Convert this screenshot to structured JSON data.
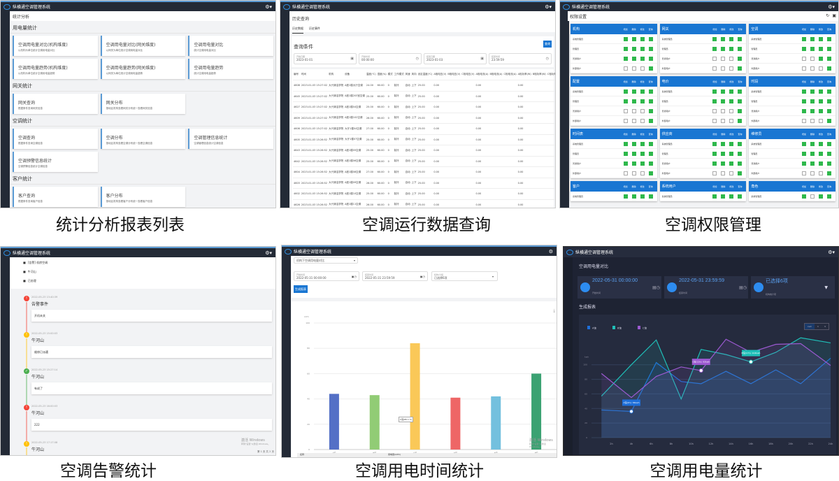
{
  "app_title": "纵横通空调管理系统",
  "captions": [
    "统计分析报表列表",
    "空调运行数据查询",
    "空调权限管理",
    "空调告警统计",
    "空调用电时间统计",
    "空调用电量统计"
  ],
  "watermark": {
    "line1": "激活 Windows",
    "line2": "转到\"设置\"以激活 Windows。"
  },
  "stats": {
    "breadcrumb": "统计分析",
    "sections": [
      {
        "title": "用电量统计",
        "cards": [
          {
            "title": "空调用电量对比(机构维度)",
            "desc": "以机构为单位统计空调用电量对比"
          },
          {
            "title": "空调用电量对比(网关维度)",
            "desc": "以网关为单位统计空调用电量对比"
          },
          {
            "title": "空调用电量对比",
            "desc": "统计空调用电量对比"
          },
          {
            "title": "空调用电量趋势(机构维度)",
            "desc": "以机构为单位统计空调用电量趋势"
          },
          {
            "title": "空调用电量趋势(网关维度)",
            "desc": "以网关为单位统计空调用电量趋势"
          },
          {
            "title": "空调用电量趋势",
            "desc": "统计空调用电量趋势"
          }
        ]
      },
      {
        "title": "网关统计",
        "cards": [
          {
            "title": "网关查询",
            "desc": "根据条件查询网关信息"
          },
          {
            "title": "网关分布",
            "desc": "按地区机构查看网关分布统一查看网关信息"
          }
        ]
      },
      {
        "title": "空调统计",
        "cards": [
          {
            "title": "空调查询",
            "desc": "根据条件查询空调信息"
          },
          {
            "title": "空调分布",
            "desc": "按地区机构查看空调分布统一查看空调信息"
          },
          {
            "title": "空调管理信息统计",
            "desc": "空调管理信息统计空调信息"
          },
          {
            "title": "空调预警信息统计",
            "desc": "空调预警信息统计空调信息"
          }
        ]
      },
      {
        "title": "客户统计",
        "cards": [
          {
            "title": "客户查询",
            "desc": "根据条件查询客户信息"
          },
          {
            "title": "客户分布",
            "desc": "按地区机构查看客户分布统一查看客户信息"
          }
        ]
      }
    ]
  },
  "history": {
    "title": "历史查询",
    "tabs": [
      "历史数据",
      "历史事件"
    ],
    "query_title": "查询条件",
    "query_button": "查询",
    "inputs": [
      {
        "label": "开始日期",
        "value": "2023-01-01",
        "icon": "calendar-icon"
      },
      {
        "label": "开始时间",
        "value": "00:00:00",
        "icon": "clock-icon"
      },
      {
        "label": "结束日期",
        "value": "2023-01-03",
        "icon": "calendar-icon"
      },
      {
        "label": "结束时间",
        "value": "23:59:59",
        "icon": "clock-icon"
      }
    ],
    "headers": [
      "编号",
      "时间",
      "机构",
      "设备",
      "温度(℃)",
      "湿度(%)",
      "模式",
      "工作模式",
      "风速",
      "风向",
      "设定温度(℃)",
      "A相电压(V)",
      "B相电压(V)",
      "C相电压(V)",
      "A相电流(A)",
      "B相电流(A)",
      "C相电流(A)",
      "A相功率(W)",
      "B相功率(W)",
      "C相功率(W)"
    ],
    "rows": [
      [
        "4608",
        "2023-01-03 15:27:02",
        "大兴清洁学院",
        "A座1楼大厅空调",
        "24.00",
        "60.00",
        "0",
        "制冷",
        "自动",
        "上下",
        "25.00",
        "0.00",
        "",
        "",
        "0.00",
        "",
        "",
        "0.00",
        "",
        ""
      ],
      [
        "4645",
        "2023-01-03 15:27:02",
        "大兴清洁学院",
        "A座1楼203室空调",
        "25.00",
        "60.00",
        "0",
        "制冷",
        "自动",
        "上下",
        "25.00",
        "0.00",
        "",
        "",
        "0.00",
        "",
        "",
        "0.00",
        "",
        ""
      ],
      [
        "4627",
        "2023-01-03 15:27:02",
        "大兴清洁学院",
        "A座1楼04空调",
        "25.00",
        "60.00",
        "0",
        "制冷",
        "自动",
        "上下",
        "25.00",
        "0.00",
        "",
        "",
        "0.00",
        "",
        "",
        "0.00",
        "",
        ""
      ],
      [
        "4609",
        "2023-01-03 15:27:02",
        "大兴清洁学院",
        "A座1楼102空调",
        "26.00",
        "60.00",
        "0",
        "制冷",
        "自动",
        "上下",
        "25.00",
        "0.00",
        "",
        "",
        "0.00",
        "",
        "",
        "0.00",
        "",
        ""
      ],
      [
        "4606",
        "2023-01-03 15:27:02",
        "大兴清洁学院",
        "大厅1楼04空调",
        "27.00",
        "60.00",
        "0",
        "制冷",
        "自动",
        "上下",
        "25.00",
        "0.00",
        "",
        "",
        "0.00",
        "",
        "",
        "0.00",
        "",
        ""
      ],
      [
        "4605",
        "2023-01-03 15:26:52",
        "大兴清洁学院",
        "大厅1楼07空调",
        "25.00",
        "60.00",
        "0",
        "制冷",
        "自动",
        "上下",
        "25.00",
        "0.00",
        "",
        "",
        "0.00",
        "",
        "",
        "0.00",
        "",
        ""
      ],
      [
        "4643",
        "2023-01-03 15:26:52",
        "大兴清洁学院",
        "A座1楼05空调",
        "25.00",
        "60.00",
        "0",
        "制冷",
        "自动",
        "上下",
        "25.00",
        "0.00",
        "",
        "",
        "0.00",
        "",
        "",
        "0.00",
        "",
        ""
      ],
      [
        "4642",
        "2023-01-03 15:26:52",
        "大兴清洁学院",
        "A座1楼06空调",
        "25.00",
        "60.00",
        "0",
        "制冷",
        "自动",
        "上下",
        "25.00",
        "0.00",
        "",
        "",
        "0.00",
        "",
        "",
        "0.00",
        "",
        ""
      ],
      [
        "4604",
        "2023-01-03 15:26:52",
        "大兴清洁学院",
        "A座1楼08空调",
        "27.00",
        "60.00",
        "0",
        "制冷",
        "自动",
        "上下",
        "25.00",
        "0.00",
        "",
        "",
        "0.00",
        "",
        "",
        "0.00",
        "",
        ""
      ],
      [
        "4603",
        "2023-01-03 15:26:52",
        "大兴清洁学院",
        "A座1楼09空调",
        "26.00",
        "60.00",
        "0",
        "制冷",
        "自动",
        "上下",
        "25.00",
        "0.00",
        "",
        "",
        "0.00",
        "",
        "",
        "0.00",
        "",
        ""
      ],
      [
        "4602",
        "2023-01-03 15:26:52",
        "大兴清洁学院",
        "A座1楼10空调",
        "25.00",
        "60.00",
        "0",
        "制冷",
        "自动",
        "上下",
        "25.00",
        "0.00",
        "",
        "",
        "0.00",
        "",
        "",
        "0.00",
        "",
        ""
      ],
      [
        "4626",
        "2023-01-03 15:26:52",
        "大兴清洁学院",
        "A座1楼11空调",
        "26.00",
        "60.00",
        "0",
        "制冷",
        "自动",
        "上下",
        "25.00",
        "0.00",
        "",
        "",
        "0.00",
        "",
        "",
        "0.00",
        "",
        ""
      ],
      [
        "4627",
        "2023-01-03 15:26:52",
        "大兴清洁学院",
        "A座1楼12空调",
        "25.00",
        "60.00",
        "0",
        "制冷",
        "自动",
        "上下",
        "25.00",
        "0.00",
        "",
        "",
        "0.00",
        "",
        "",
        "0.00",
        "",
        ""
      ]
    ]
  },
  "permissions": {
    "title": "权限设置",
    "columns": [
      "增加",
      "删除",
      "修改",
      "查询"
    ],
    "roles": [
      "系统管理员",
      "管理员",
      "普通用户",
      "外部用户"
    ],
    "groups": [
      {
        "name": "机构",
        "checks": [
          [
            1,
            1,
            1,
            1
          ],
          [
            1,
            1,
            1,
            1
          ],
          [
            1,
            1,
            1,
            1
          ],
          [
            0,
            0,
            0,
            1
          ]
        ]
      },
      {
        "name": "网关",
        "checks": [
          [
            1,
            1,
            1,
            1
          ],
          [
            1,
            1,
            1,
            1
          ],
          [
            0,
            0,
            0,
            1
          ],
          [
            0,
            0,
            0,
            1
          ]
        ]
      },
      {
        "name": "空调",
        "checks": [
          [
            1,
            1,
            1,
            1
          ],
          [
            1,
            1,
            1,
            1
          ],
          [
            0,
            0,
            1,
            1
          ],
          [
            0,
            0,
            0,
            1
          ]
        ]
      },
      {
        "name": "配置",
        "checks": [
          [
            1,
            1,
            1,
            1
          ],
          [
            1,
            1,
            1,
            1
          ],
          [
            0,
            0,
            0,
            1
          ],
          [
            0,
            0,
            0,
            1
          ]
        ]
      },
      {
        "name": "电价",
        "checks": [
          [
            1,
            1,
            1,
            1
          ],
          [
            1,
            1,
            1,
            1
          ],
          [
            0,
            0,
            0,
            1
          ],
          [
            0,
            0,
            0,
            1
          ]
        ]
      },
      {
        "name": "时段",
        "checks": [
          [
            1,
            1,
            1,
            1
          ],
          [
            1,
            1,
            1,
            1
          ],
          [
            1,
            1,
            1,
            1
          ],
          [
            0,
            0,
            0,
            1
          ]
        ]
      },
      {
        "name": "时间表",
        "checks": [
          [
            1,
            1,
            1,
            1
          ],
          [
            1,
            1,
            1,
            1
          ],
          [
            1,
            1,
            1,
            1
          ],
          [
            0,
            0,
            0,
            1
          ]
        ]
      },
      {
        "name": "供应商",
        "checks": [
          [
            1,
            1,
            1,
            1
          ],
          [
            1,
            1,
            1,
            1
          ],
          [
            1,
            1,
            1,
            1
          ],
          [
            0,
            0,
            0,
            1
          ]
        ]
      },
      {
        "name": "维修员",
        "checks": [
          [
            1,
            1,
            1,
            1
          ],
          [
            1,
            1,
            1,
            1
          ],
          [
            1,
            1,
            1,
            1
          ],
          [
            0,
            0,
            0,
            1
          ]
        ]
      },
      {
        "name": "客户",
        "checks": [
          [
            1,
            1,
            1,
            1
          ]
        ]
      },
      {
        "name": "系统用户",
        "checks": [
          [
            1,
            1,
            1,
            1
          ]
        ]
      },
      {
        "name": "角色",
        "checks": [
          [
            1,
            0,
            1,
            1
          ]
        ]
      }
    ]
  },
  "alarms": {
    "legend": [
      {
        "icon": "alarm-icon",
        "label": "[告警] 机房空调"
      },
      {
        "icon": "building-icon",
        "label": "牛河山"
      },
      {
        "icon": "handled-icon",
        "label": "已处理"
      }
    ],
    "events": [
      {
        "time": "2022-05-23 13:40:39",
        "title": "告警事件",
        "detail": "开机未关",
        "color": "#f44336",
        "mark": "!"
      },
      {
        "time": "2022-05-23 15:00:03",
        "title": "牛河山",
        "detail": "维修已派遣",
        "color": "#ffc107",
        "mark": "!"
      },
      {
        "time": "2022-05-23 15:27:14",
        "title": "牛河山",
        "detail": "有成了",
        "color": "#4caf50",
        "mark": "✓"
      },
      {
        "time": "2022-05-23 16:00:03",
        "title": "牛河山",
        "detail": "222",
        "color": "#f44336",
        "mark": "!"
      },
      {
        "time": "2022-05-23 17:17:08",
        "title": "牛河山",
        "detail": "",
        "color": "#ffc107",
        "mark": "!"
      }
    ],
    "pager": "第 1 页 共 2 页"
  },
  "usage_time": {
    "select": "机构下空调用电量对比",
    "start": {
      "label": "开始时间",
      "value": "2022-05-31 00:00:00"
    },
    "end": {
      "label": "结束时间",
      "value": "2022-05-31 23:59:59"
    },
    "multi": {
      "label": "机构/分组",
      "value": "已选择6项"
    },
    "button": "生成报表",
    "table_headers": [
      "名称",
      "用电量(kWh)"
    ],
    "tooltip": "C馆(85.1 h)"
  },
  "usage_energy": {
    "title": "空调用电量对比",
    "start": {
      "value": "2022-05-31 00:00:00",
      "label": "开始时间"
    },
    "end": {
      "value": "2022-05-31 23:59:59",
      "label": "结束时间"
    },
    "orgs": {
      "value": "已选择6项",
      "label": "机构统计项"
    },
    "section": "生成报表",
    "toggles": [
      "kwh",
      "h",
      "¥"
    ]
  },
  "chart_data": [
    {
      "type": "bar",
      "categories": [
        "A馆",
        "B馆",
        "C馆",
        "D馆",
        "E馆",
        "F馆"
      ],
      "values": [
        44,
        43,
        84,
        41,
        42,
        60
      ],
      "ylim": [
        0,
        100
      ],
      "yticks": [
        0,
        20,
        40,
        60,
        80,
        100
      ],
      "ylabel": "kWh",
      "grid": true,
      "colors": [
        "#5470c6",
        "#91cc75",
        "#fac858",
        "#ee6666",
        "#73c0de",
        "#3ba272"
      ]
    },
    {
      "type": "area",
      "x": [
        1,
        4,
        6.5,
        9,
        11,
        13.5,
        16,
        18.5,
        21,
        24
      ],
      "xticks": [
        "2h",
        "4h",
        "6h",
        "8h",
        "10h",
        "12h",
        "14h",
        "16h",
        "18h",
        "20h",
        "22h",
        "24h"
      ],
      "ylim": [
        0,
        140
      ],
      "yticks": [
        0,
        20,
        40,
        60,
        80,
        100
      ],
      "ylabel": "kwh",
      "legend": "top-left",
      "grid": true,
      "series": [
        {
          "name": "A馆",
          "color": "#1e6fd9",
          "values": [
            38,
            36,
            103,
            77,
            74,
            91,
            74,
            93,
            74,
            109
          ]
        },
        {
          "name": "B馆",
          "color": "#1fbfb8",
          "values": [
            57,
            100,
            134,
            53,
            121,
            114,
            104,
            117,
            137,
            130
          ]
        },
        {
          "name": "C馆",
          "color": "#9b59d0",
          "values": [
            88,
            55,
            84,
            97,
            92,
            135,
            117,
            128,
            129,
            99
          ]
        }
      ],
      "annotations": [
        {
          "series": "A馆",
          "x": 4,
          "text": "A馆(4h): 36kwh"
        },
        {
          "series": "C馆",
          "x": 11,
          "text": "C馆(12h): 92kwh"
        },
        {
          "series": "B馆",
          "x": 16,
          "text": "B馆(17h): 104kwh"
        }
      ]
    }
  ]
}
